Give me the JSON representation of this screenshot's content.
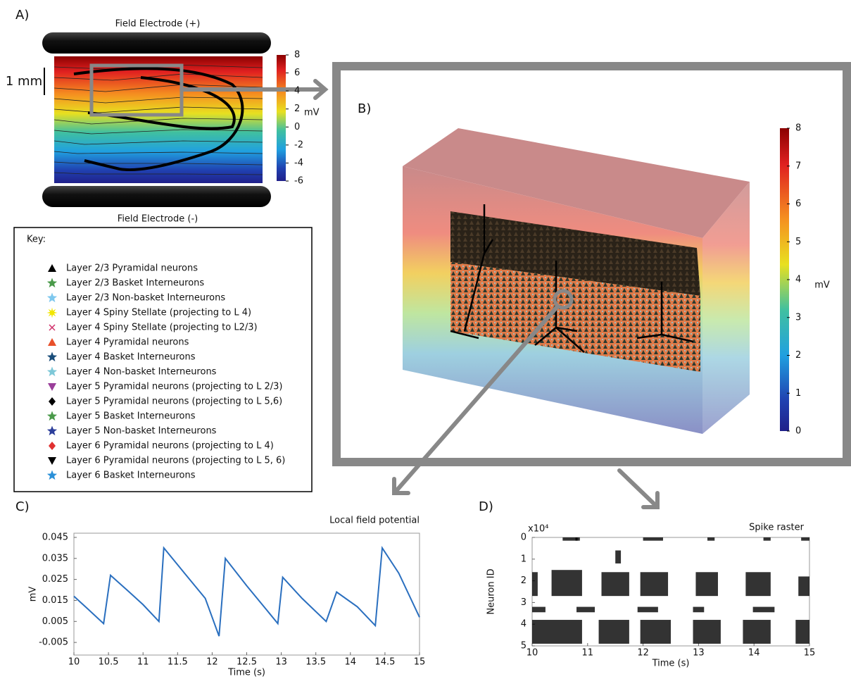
{
  "panel_a": {
    "label": "A)",
    "top_electrode": "Field Electrode (+)",
    "bottom_electrode": "Field Electrode (-)",
    "scale_bar": "1 mm",
    "colorbar": {
      "unit": "mV",
      "lim": [
        -6,
        8
      ],
      "ticks": [
        8,
        6,
        4,
        2,
        0,
        -2,
        -4,
        -6
      ]
    }
  },
  "key": {
    "title": "Key:",
    "items": [
      {
        "label": "Layer 2/3 Pyramidal neurons",
        "marker": "triangle",
        "color": "#000000"
      },
      {
        "label": "Layer 2/3 Basket Interneurons",
        "marker": "star",
        "color": "#4a9a4a"
      },
      {
        "label": "Layer 2/3 Non-basket Interneurons",
        "marker": "star",
        "color": "#7ec8ee"
      },
      {
        "label": "Layer 4 Spiny Stellate (projecting to L 4)",
        "marker": "burst",
        "color": "#f2e600"
      },
      {
        "label": "Layer 4 Spiny Stellate (projecting to L2/3)",
        "marker": "x",
        "color": "#d0306a"
      },
      {
        "label": "Layer 4 Pyramidal neurons",
        "marker": "triangle",
        "color": "#e8502a"
      },
      {
        "label": "Layer 4 Basket Interneurons",
        "marker": "star",
        "color": "#1a4d7a"
      },
      {
        "label": "Layer 4 Non-basket Interneurons",
        "marker": "star",
        "color": "#7ec8d8"
      },
      {
        "label": "Layer 5 Pyramidal neurons (projecting to L 2/3)",
        "marker": "triangle-down",
        "color": "#9a3e9a"
      },
      {
        "label": "Layer 5 Pyramidal neurons (projecting to L 5,6)",
        "marker": "diamond",
        "color": "#000000"
      },
      {
        "label": "Layer 5 Basket Interneurons",
        "marker": "star",
        "color": "#4a9a4a"
      },
      {
        "label": "Layer 5 Non-basket Interneurons",
        "marker": "star",
        "color": "#2c3e9a"
      },
      {
        "label": "Layer 6 Pyramidal neurons (projecting to L 4)",
        "marker": "diamond",
        "color": "#e03030"
      },
      {
        "label": "Layer 6 Pyramidal neurons (projecting to L 5, 6)",
        "marker": "triangle-down",
        "color": "#000000"
      },
      {
        "label": "Layer 6 Basket Interneurons",
        "marker": "star",
        "color": "#2a90d8"
      }
    ]
  },
  "panel_b": {
    "label": "B)",
    "colorbar": {
      "unit": "mV",
      "lim": [
        0,
        8
      ],
      "ticks": [
        8,
        7,
        6,
        5,
        4,
        3,
        2,
        1,
        0
      ]
    }
  },
  "chart_data": [
    {
      "type": "line",
      "label": "C)",
      "title": "Local field potential",
      "x_label": "Time (s)",
      "y_label": "mV",
      "color": "#2a6fbf",
      "x": [
        10,
        10.2,
        10.43,
        10.53,
        10.8,
        11.0,
        11.23,
        11.3,
        11.6,
        11.9,
        12.1,
        12.19,
        12.5,
        12.8,
        12.95,
        13.02,
        13.3,
        13.65,
        13.8,
        14.1,
        14.36,
        14.46,
        14.7,
        15
      ],
      "values": [
        0.017,
        0.011,
        0.004,
        0.027,
        0.019,
        0.013,
        0.005,
        0.04,
        0.028,
        0.016,
        -0.002,
        0.035,
        0.022,
        0.01,
        0.004,
        0.026,
        0.016,
        0.005,
        0.019,
        0.012,
        0.003,
        0.04,
        0.028,
        0.007
      ],
      "xlim": [
        10,
        15
      ],
      "xticks": [
        10,
        10.5,
        11,
        11.5,
        12,
        12.5,
        13,
        13.5,
        14,
        14.5,
        15
      ],
      "ylim": [
        -0.011,
        0.047
      ],
      "yticks": [
        0.045,
        0.035,
        0.025,
        0.015,
        0.005,
        -0.005
      ]
    },
    {
      "type": "raster",
      "label": "D)",
      "title": "Spike raster",
      "x_label": "Time (s)",
      "y_label": "Neuron ID",
      "y_multiplier": "x10⁴",
      "color": "#000000",
      "xlim": [
        10,
        15
      ],
      "xticks": [
        10,
        11,
        12,
        13,
        14,
        15
      ],
      "ylim": [
        0,
        5
      ],
      "yticks": [
        0,
        1,
        2,
        3,
        4,
        5
      ],
      "bursts": [
        {
          "x": [
            10.55,
            10.82
          ],
          "y": [
            0,
            0.15
          ]
        },
        {
          "x": [
            10.78,
            10.86
          ],
          "y": [
            0,
            0.15
          ]
        },
        {
          "x": [
            10.0,
            10.1
          ],
          "y": [
            1.6,
            2.7
          ]
        },
        {
          "x": [
            10.35,
            10.9
          ],
          "y": [
            1.5,
            2.7
          ]
        },
        {
          "x": [
            10.0,
            10.24
          ],
          "y": [
            3.2,
            3.45
          ]
        },
        {
          "x": [
            10.8,
            11.13
          ],
          "y": [
            3.2,
            3.45
          ]
        },
        {
          "x": [
            10.0,
            10.9
          ],
          "y": [
            3.8,
            4.9
          ]
        },
        {
          "x": [
            11.5,
            11.6
          ],
          "y": [
            0.6,
            1.2
          ]
        },
        {
          "x": [
            11.25,
            11.75
          ],
          "y": [
            1.6,
            2.7
          ]
        },
        {
          "x": [
            11.2,
            11.75
          ],
          "y": [
            3.8,
            4.9
          ]
        },
        {
          "x": [
            12.0,
            12.36
          ],
          "y": [
            0,
            0.15
          ]
        },
        {
          "x": [
            11.9,
            12.27
          ],
          "y": [
            3.2,
            3.45
          ]
        },
        {
          "x": [
            11.95,
            12.45
          ],
          "y": [
            1.6,
            2.7
          ]
        },
        {
          "x": [
            11.95,
            12.5
          ],
          "y": [
            3.8,
            4.9
          ]
        },
        {
          "x": [
            13.16,
            13.29
          ],
          "y": [
            0,
            0.15
          ]
        },
        {
          "x": [
            12.9,
            13.1
          ],
          "y": [
            3.2,
            3.45
          ]
        },
        {
          "x": [
            12.95,
            13.35
          ],
          "y": [
            1.6,
            2.7
          ]
        },
        {
          "x": [
            12.9,
            13.4
          ],
          "y": [
            3.8,
            4.9
          ]
        },
        {
          "x": [
            14.17,
            14.3
          ],
          "y": [
            0,
            0.15
          ]
        },
        {
          "x": [
            13.98,
            14.37
          ],
          "y": [
            3.2,
            3.45
          ]
        },
        {
          "x": [
            13.85,
            14.3
          ],
          "y": [
            1.6,
            2.7
          ]
        },
        {
          "x": [
            13.8,
            14.3
          ],
          "y": [
            3.8,
            4.9
          ]
        },
        {
          "x": [
            14.85,
            15.0
          ],
          "y": [
            0,
            0.15
          ]
        },
        {
          "x": [
            14.8,
            15.0
          ],
          "y": [
            1.8,
            2.7
          ]
        },
        {
          "x": [
            14.75,
            15.0
          ],
          "y": [
            3.8,
            4.9
          ]
        }
      ]
    }
  ]
}
